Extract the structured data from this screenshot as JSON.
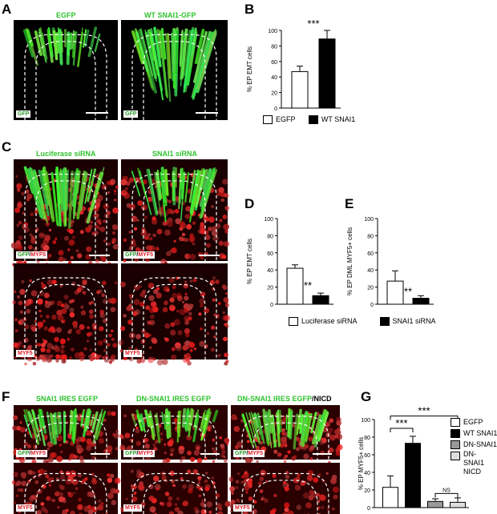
{
  "panels": {
    "A": {
      "letter": "A",
      "images": [
        {
          "title": "EGFP",
          "tag": [
            {
              "t": "GFP",
              "c": "g"
            }
          ]
        },
        {
          "title": "WT SNAI1-GFP",
          "tag": [
            {
              "t": "GFP",
              "c": "g"
            }
          ]
        }
      ]
    },
    "C": {
      "letter": "C",
      "images": [
        {
          "title": "Luciferase siRNA",
          "tag": [
            {
              "t": "GFP",
              "c": "g"
            },
            {
              "t": "/",
              "c": "k"
            },
            {
              "t": "MYF5",
              "c": "r"
            }
          ]
        },
        {
          "title": "SNAI1 siRNA",
          "tag": [
            {
              "t": "GFP",
              "c": "g"
            },
            {
              "t": "/",
              "c": "k"
            },
            {
              "t": "MYF5",
              "c": "r"
            }
          ]
        },
        {
          "title": "",
          "tag": [
            {
              "t": "MYF5",
              "c": "r"
            }
          ]
        },
        {
          "title": "",
          "tag": [
            {
              "t": "MYF5",
              "c": "r"
            }
          ]
        }
      ]
    },
    "F": {
      "letter": "F",
      "images": [
        {
          "title": "SNAI1 IRES EGFP",
          "tag": [
            {
              "t": "GFP",
              "c": "g"
            },
            {
              "t": "/",
              "c": "k"
            },
            {
              "t": "MYF5",
              "c": "r"
            }
          ]
        },
        {
          "title": "DN-SNAI1 IRES EGFP",
          "tag": [
            {
              "t": "GFP",
              "c": "g"
            },
            {
              "t": "/",
              "c": "k"
            },
            {
              "t": "MYF5",
              "c": "r"
            }
          ]
        },
        {
          "title": "DN-SNAI1 IRES EGFP",
          "title_suffix": "/NICD",
          "tag": [
            {
              "t": "GFP",
              "c": "g"
            },
            {
              "t": "/",
              "c": "k"
            },
            {
              "t": "MYF5",
              "c": "r"
            }
          ]
        },
        {
          "title": "",
          "tag": [
            {
              "t": "MYF5",
              "c": "r"
            }
          ]
        },
        {
          "title": "",
          "tag": [
            {
              "t": "MYF5",
              "c": "r"
            }
          ]
        },
        {
          "title": "",
          "tag": [
            {
              "t": "MYF5",
              "c": "r"
            }
          ]
        }
      ]
    }
  },
  "chart_data": [
    {
      "panel": "B",
      "type": "bar",
      "categories": [
        "EGFP",
        "WT SNAI1"
      ],
      "values": [
        47,
        89
      ],
      "errors": [
        7,
        11
      ],
      "colors": [
        "#ffffff",
        "#000000"
      ],
      "ylabel": "% EP EMT cells",
      "ylim": [
        0,
        100
      ],
      "yticks": [
        0,
        20,
        40,
        60,
        80,
        100
      ],
      "significance": "***",
      "legend": [
        "EGFP",
        "WT SNAI1"
      ]
    },
    {
      "panel": "D",
      "type": "bar",
      "categories": [
        "Luciferase siRNA",
        "SNAI1 siRNA"
      ],
      "values": [
        42,
        10
      ],
      "errors": [
        4,
        3
      ],
      "colors": [
        "#ffffff",
        "#000000"
      ],
      "ylabel": "% EP EMT cells",
      "ylim": [
        0,
        100
      ],
      "yticks": [
        0,
        20,
        40,
        60,
        80,
        100
      ],
      "significance": "**"
    },
    {
      "panel": "E",
      "type": "bar",
      "categories": [
        "Luciferase siRNA",
        "SNAI1 siRNA"
      ],
      "values": [
        27,
        7
      ],
      "errors": [
        12,
        3
      ],
      "colors": [
        "#ffffff",
        "#000000"
      ],
      "ylabel": "% EP DML MYF5+ cells",
      "ylim": [
        0,
        100
      ],
      "yticks": [
        0,
        20,
        40,
        60,
        80,
        100
      ],
      "significance": "**"
    },
    {
      "panel": "G",
      "type": "bar",
      "categories": [
        "EGFP",
        "WT SNAI1",
        "DN-SNAI1",
        "DN-SNAI1 NICD"
      ],
      "values": [
        23,
        73,
        7,
        6
      ],
      "errors": [
        13,
        8,
        3,
        5
      ],
      "colors": [
        "#ffffff",
        "#000000",
        "#999999",
        "#dddddd"
      ],
      "ylabel": "% EP MYF5+ cells",
      "ylim": [
        0,
        100
      ],
      "yticks": [
        0,
        20,
        40,
        60,
        80,
        100
      ],
      "comparisons": [
        "***",
        "***",
        "NS"
      ],
      "legend": [
        "EGFP",
        "WT SNAI1",
        "DN-SNAI1",
        "DN-SNAI1 NICD"
      ]
    }
  ],
  "legend_DE": [
    "Luciferase siRNA",
    "SNAI1 siRNA"
  ],
  "panel_letters": {
    "B": "B",
    "D": "D",
    "E": "E",
    "G": "G"
  }
}
